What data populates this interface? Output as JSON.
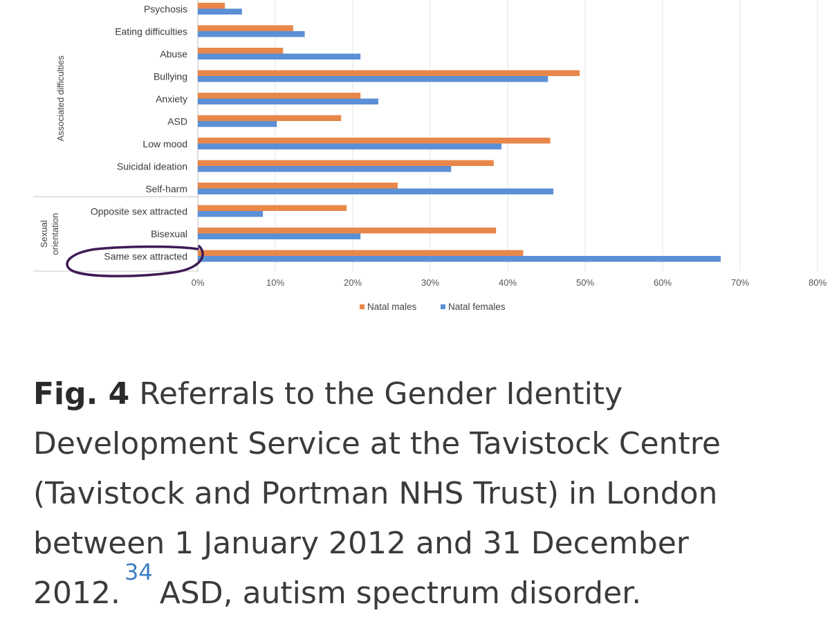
{
  "chart_data": {
    "type": "bar",
    "orientation": "horizontal",
    "categories": [
      "Psychosis",
      "Eating difficulties",
      "Abuse",
      "Bullying",
      "Anxiety",
      "ASD",
      "Low mood",
      "Suicidal ideation",
      "Self-harm",
      "Opposite sex attracted",
      "Bisexual",
      "Same sex attracted"
    ],
    "groups": [
      {
        "label": "Associated difficulties",
        "categories": [
          "Psychosis",
          "Eating difficulties",
          "Abuse",
          "Bullying",
          "Anxiety",
          "ASD",
          "Low mood",
          "Suicidal ideation",
          "Self-harm"
        ]
      },
      {
        "label": "Sexual orientation",
        "categories": [
          "Opposite sex attracted",
          "Bisexual",
          "Same sex attracted"
        ]
      }
    ],
    "series": [
      {
        "name": "Natal males",
        "color": "#e8874a",
        "values": [
          3.5,
          12.3,
          11,
          49.3,
          21,
          18.5,
          45.5,
          38.2,
          25.8,
          19.2,
          38.5,
          42
        ]
      },
      {
        "name": "Natal females",
        "color": "#5b8fd6",
        "values": [
          5.7,
          13.8,
          21,
          45.2,
          23.3,
          10.2,
          39.2,
          32.7,
          45.9,
          8.4,
          21,
          67.5
        ]
      }
    ],
    "xlim": [
      0,
      80
    ],
    "xticks": [
      "0%",
      "10%",
      "20%",
      "30%",
      "40%",
      "50%",
      "60%",
      "70%",
      "80%"
    ],
    "grid": true,
    "legend": "bottom",
    "annotation": "Same sex attracted circled"
  },
  "caption": {
    "label": "Fig. 4",
    "text": "Referrals to the Gender Identity Development Service at the Tavistock Centre (Tavistock and Portman NHS Trust) in London between 1 January 2012 and 31 December 2012.",
    "ref": "34",
    "after": "ASD, autism spectrum disorder."
  }
}
